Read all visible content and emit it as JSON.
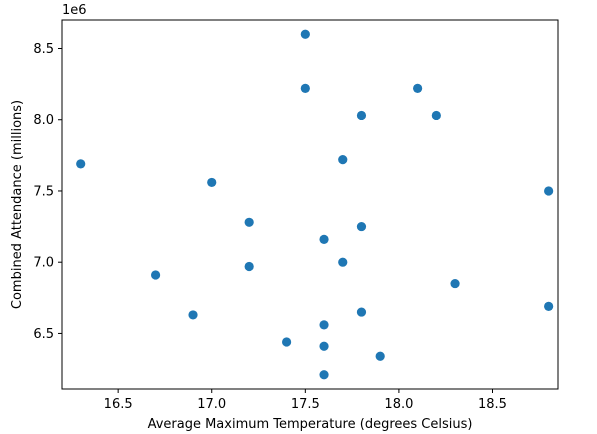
{
  "chart_data": {
    "type": "scatter",
    "title": "",
    "xlabel": "Average Maximum Temperature (degrees Celsius)",
    "ylabel": "Combined Attendance (millions)",
    "y_offset_label": "1e6",
    "xlim": [
      16.2,
      18.85
    ],
    "ylim": [
      6.11,
      8.7
    ],
    "x_ticks": [
      16.5,
      17.0,
      17.5,
      18.0,
      18.5
    ],
    "x_tick_labels": [
      "16.5",
      "17.0",
      "17.5",
      "18.0",
      "18.5"
    ],
    "y_ticks": [
      6.5,
      7.0,
      7.5,
      8.0,
      8.5
    ],
    "y_tick_labels": [
      "6.5",
      "7.0",
      "7.5",
      "8.0",
      "8.5"
    ],
    "grid": false,
    "legend": "none",
    "point_color": "#1f77b4",
    "points": [
      {
        "x": 17.5,
        "y": 8.6
      },
      {
        "x": 17.5,
        "y": 8.22
      },
      {
        "x": 18.1,
        "y": 8.22
      },
      {
        "x": 17.8,
        "y": 8.03
      },
      {
        "x": 18.2,
        "y": 8.03
      },
      {
        "x": 16.3,
        "y": 7.69
      },
      {
        "x": 17.7,
        "y": 7.72
      },
      {
        "x": 17.0,
        "y": 7.56
      },
      {
        "x": 18.8,
        "y": 7.5
      },
      {
        "x": 17.2,
        "y": 7.28
      },
      {
        "x": 17.8,
        "y": 7.25
      },
      {
        "x": 17.6,
        "y": 7.16
      },
      {
        "x": 17.7,
        "y": 7.0
      },
      {
        "x": 17.2,
        "y": 6.97
      },
      {
        "x": 16.7,
        "y": 6.91
      },
      {
        "x": 18.3,
        "y": 6.85
      },
      {
        "x": 18.8,
        "y": 6.69
      },
      {
        "x": 17.8,
        "y": 6.65
      },
      {
        "x": 16.9,
        "y": 6.63
      },
      {
        "x": 17.6,
        "y": 6.56
      },
      {
        "x": 17.4,
        "y": 6.44
      },
      {
        "x": 17.6,
        "y": 6.41
      },
      {
        "x": 17.9,
        "y": 6.34
      },
      {
        "x": 17.6,
        "y": 6.21
      }
    ]
  }
}
